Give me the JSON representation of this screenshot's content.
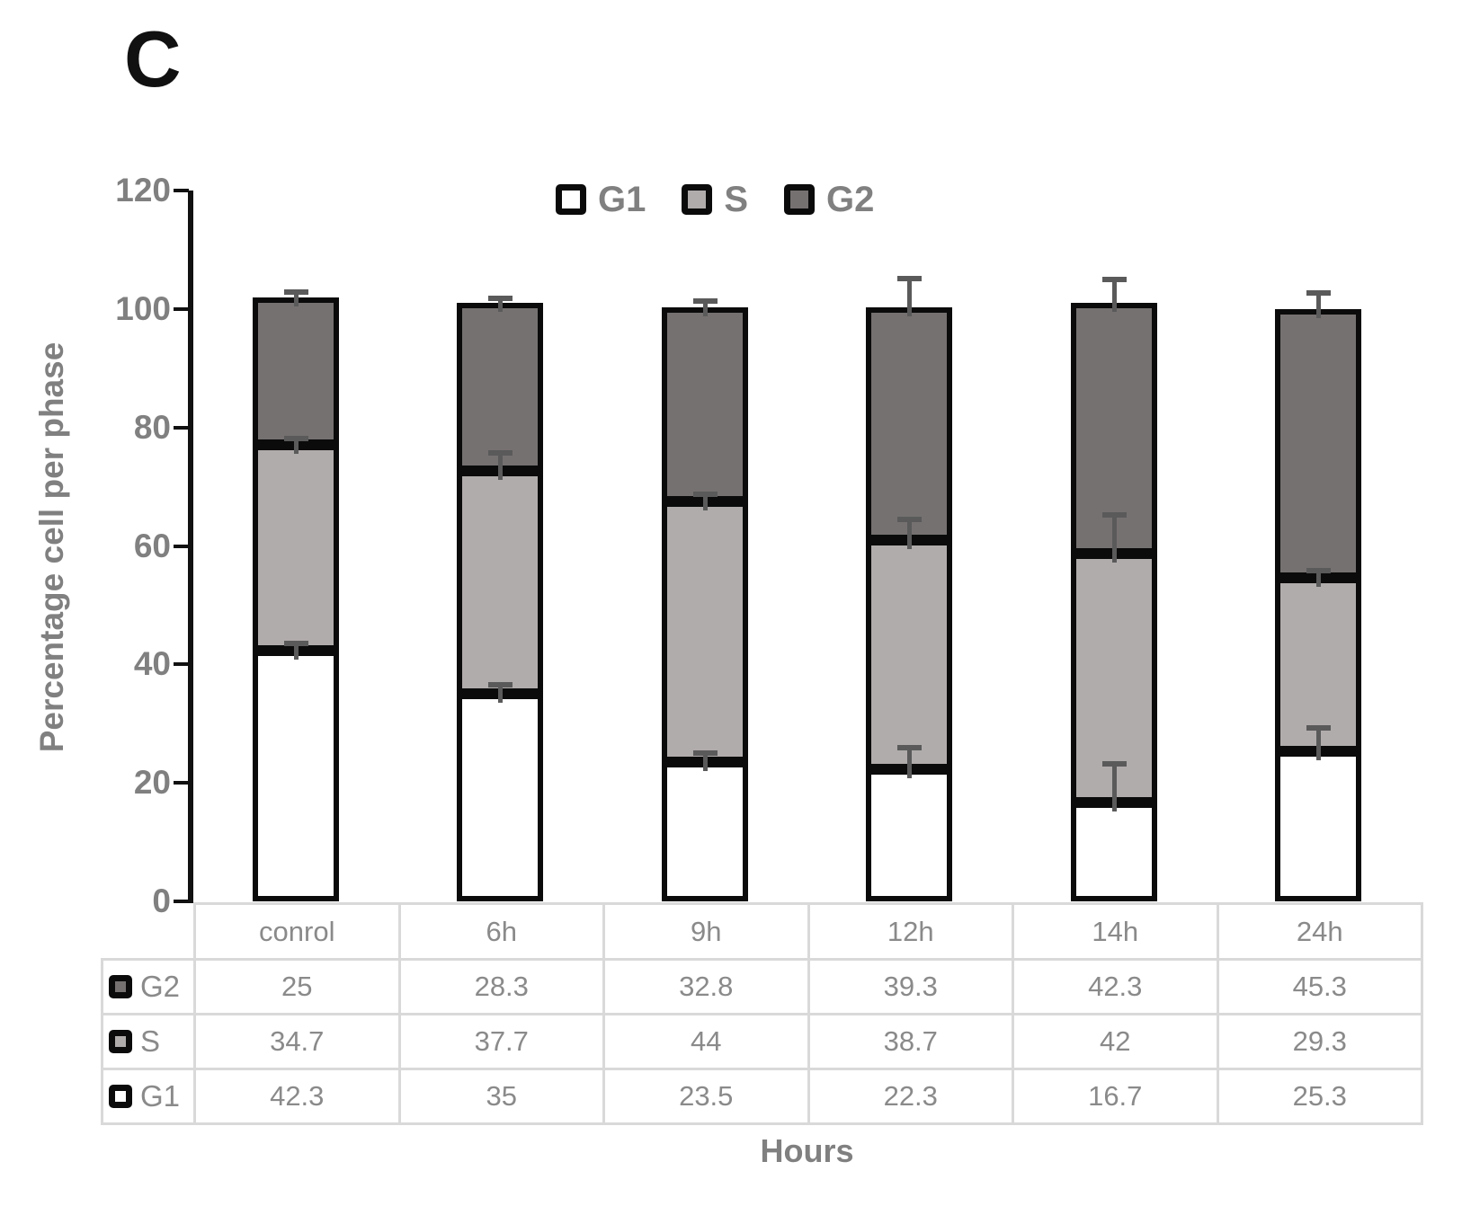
{
  "panel_label": "C",
  "chart_data": {
    "type": "bar",
    "stacked": true,
    "categories": [
      "conrol",
      "6h",
      "9h",
      "12h",
      "14h",
      "24h"
    ],
    "series": [
      {
        "name": "G1",
        "color": "#ffffff",
        "values": [
          42.3,
          35,
          23.5,
          22.3,
          16.7,
          25.3
        ],
        "display": [
          "42.3",
          "35",
          "23.5",
          "22.3",
          "16.7",
          "25.3"
        ],
        "errors_up": [
          1.2,
          1.6,
          1.5,
          3.6,
          6.5,
          4.0
        ]
      },
      {
        "name": "S",
        "color": "#b1acac",
        "values": [
          34.7,
          37.7,
          44,
          38.7,
          42,
          29.3
        ],
        "display": [
          "34.7",
          "37.7",
          "44",
          "38.7",
          "42",
          "29.3"
        ],
        "errors_up": [
          1.2,
          3.0,
          1.2,
          3.5,
          6.5,
          1.2
        ]
      },
      {
        "name": "G2",
        "color": "#767171",
        "values": [
          25,
          28.3,
          32.8,
          39.3,
          42.3,
          45.3
        ],
        "display": [
          "25",
          "28.3",
          "32.8",
          "39.3",
          "42.3",
          "45.3"
        ],
        "errors_up": [
          0.8,
          0.8,
          1.0,
          4.8,
          4.0,
          2.8
        ]
      }
    ],
    "legend_order": [
      "G1",
      "S",
      "G2"
    ],
    "table_row_order": [
      "G2",
      "S",
      "G1"
    ],
    "ylabel": "Percentage cell per phase",
    "xlabel": "Hours",
    "ylim": [
      0,
      120
    ],
    "yticks": [
      0,
      20,
      40,
      60,
      80,
      100,
      120
    ],
    "grid": false,
    "legend_position": "top-center"
  },
  "colors": {
    "bar_border": "#0b0b0b",
    "axis_line": "#111111",
    "error_bar": "#5a5a5a",
    "gray_text": "#808080",
    "table_border": "#d9d9d9",
    "table_text": "#8a8a8a"
  }
}
